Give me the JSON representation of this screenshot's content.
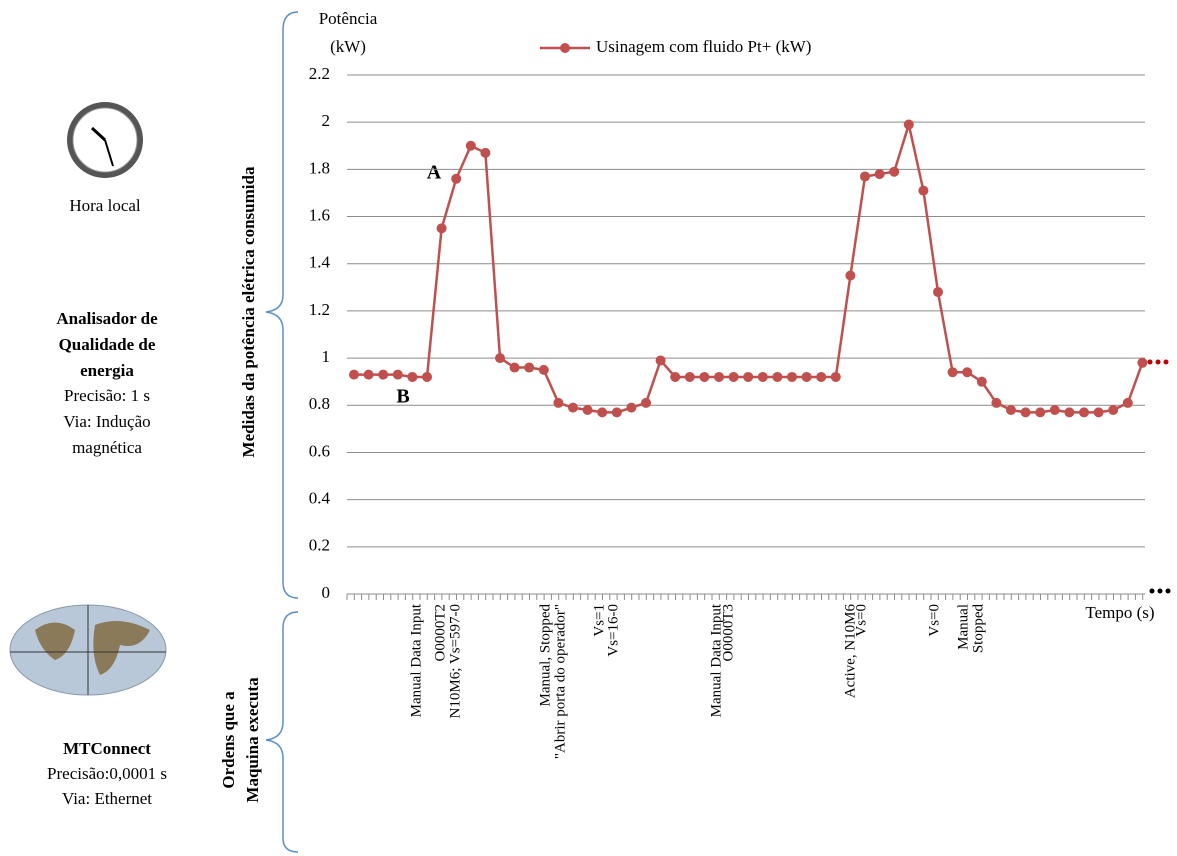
{
  "panel": {
    "clock_caption": "Hora local",
    "analyzer_title": [
      "Analisador de",
      "Qualidade de",
      "energia"
    ],
    "analyzer_lines": [
      "Precisão: 1 s",
      "Via: Indução",
      "magnética"
    ],
    "mtconnect_title": "MTConnect",
    "mtconnect_lines": [
      "Precisão:0,0001 s",
      "Via: Ethernet"
    ]
  },
  "chart_data": {
    "type": "line",
    "y_label": [
      "Potência",
      "(kW)"
    ],
    "x_label": "Tempo (s)",
    "side_label": "Medidas da potência elétrica consumida",
    "orders_label": [
      "Ordens que a",
      "Maquina executa"
    ],
    "point_labels": [
      "A",
      "B"
    ],
    "commands": [
      "Manual Data Input",
      "O0000T2",
      "N10M6; Vs=597-0",
      "Manual, Stopped",
      "\"Abrir porta do operador\"",
      "Vs=1",
      "Vs=16-0",
      "Manual Data Input",
      "O0000T3",
      "Active, N10M6",
      "Vs=0",
      "Vs=0",
      "Manual",
      "Stopped"
    ],
    "categories": [
      null,
      null,
      null,
      null,
      null,
      null,
      null,
      null,
      null,
      null,
      null,
      null,
      null,
      null,
      null,
      null,
      null,
      null,
      null,
      null,
      null,
      null,
      null,
      null,
      null,
      null,
      null,
      null,
      null,
      null,
      null,
      null,
      null,
      null,
      null,
      null,
      null,
      null,
      null,
      null,
      null,
      null,
      null,
      null,
      null,
      null,
      null,
      null,
      null,
      null,
      null,
      null,
      null,
      null,
      null
    ],
    "series": [
      {
        "name": "Usinagem com fluido Pt+ (kW)",
        "color": "#c0504d",
        "values": [
          0.93,
          0.93,
          0.93,
          0.93,
          0.92,
          0.92,
          1.55,
          1.76,
          1.9,
          1.87,
          1.0,
          0.96,
          0.96,
          0.95,
          0.81,
          0.79,
          0.78,
          0.77,
          0.77,
          0.79,
          0.81,
          0.99,
          0.92,
          0.92,
          0.92,
          0.92,
          0.92,
          0.92,
          0.92,
          0.92,
          0.92,
          0.92,
          0.92,
          0.92,
          1.35,
          1.77,
          1.78,
          1.79,
          1.99,
          1.71,
          1.28,
          0.94,
          0.94,
          0.9,
          0.81,
          0.78,
          0.77,
          0.77,
          0.78,
          0.77,
          0.77,
          0.77,
          0.78,
          0.81,
          0.98
        ]
      }
    ],
    "ylim": [
      0,
      2.2
    ],
    "yticks": [
      0,
      0.2,
      0.4,
      0.6,
      0.8,
      1,
      1.2,
      1.4,
      1.6,
      1.8,
      2,
      2.2
    ],
    "grid": true
  }
}
